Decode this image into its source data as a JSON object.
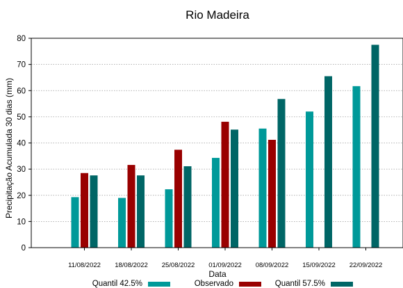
{
  "chart_data": {
    "type": "bar",
    "title": "Rio Madeira",
    "xlabel": "Data",
    "ylabel": "Precipitação Acumulada 30 dias (mm)",
    "ylim": [
      0,
      80
    ],
    "yticks": [
      0,
      10,
      20,
      30,
      40,
      50,
      60,
      70,
      80
    ],
    "grid": true,
    "legend_position": "bottom",
    "categories": [
      "11/08/2022",
      "18/08/2022",
      "25/08/2022",
      "01/09/2022",
      "08/09/2022",
      "15/09/2022",
      "22/09/2022"
    ],
    "series": [
      {
        "name": "Quantil 42.5%",
        "color": "#009999",
        "values": [
          19.3,
          19.0,
          22.3,
          34.3,
          45.5,
          52.0,
          61.7
        ]
      },
      {
        "name": "Observado",
        "color": "#990000",
        "values": [
          28.5,
          31.6,
          37.4,
          48.1,
          41.2,
          null,
          null
        ]
      },
      {
        "name": "Quantil 57.5%",
        "color": "#006666",
        "values": [
          27.6,
          27.6,
          31.1,
          45.1,
          56.8,
          65.5,
          77.5
        ]
      }
    ]
  }
}
